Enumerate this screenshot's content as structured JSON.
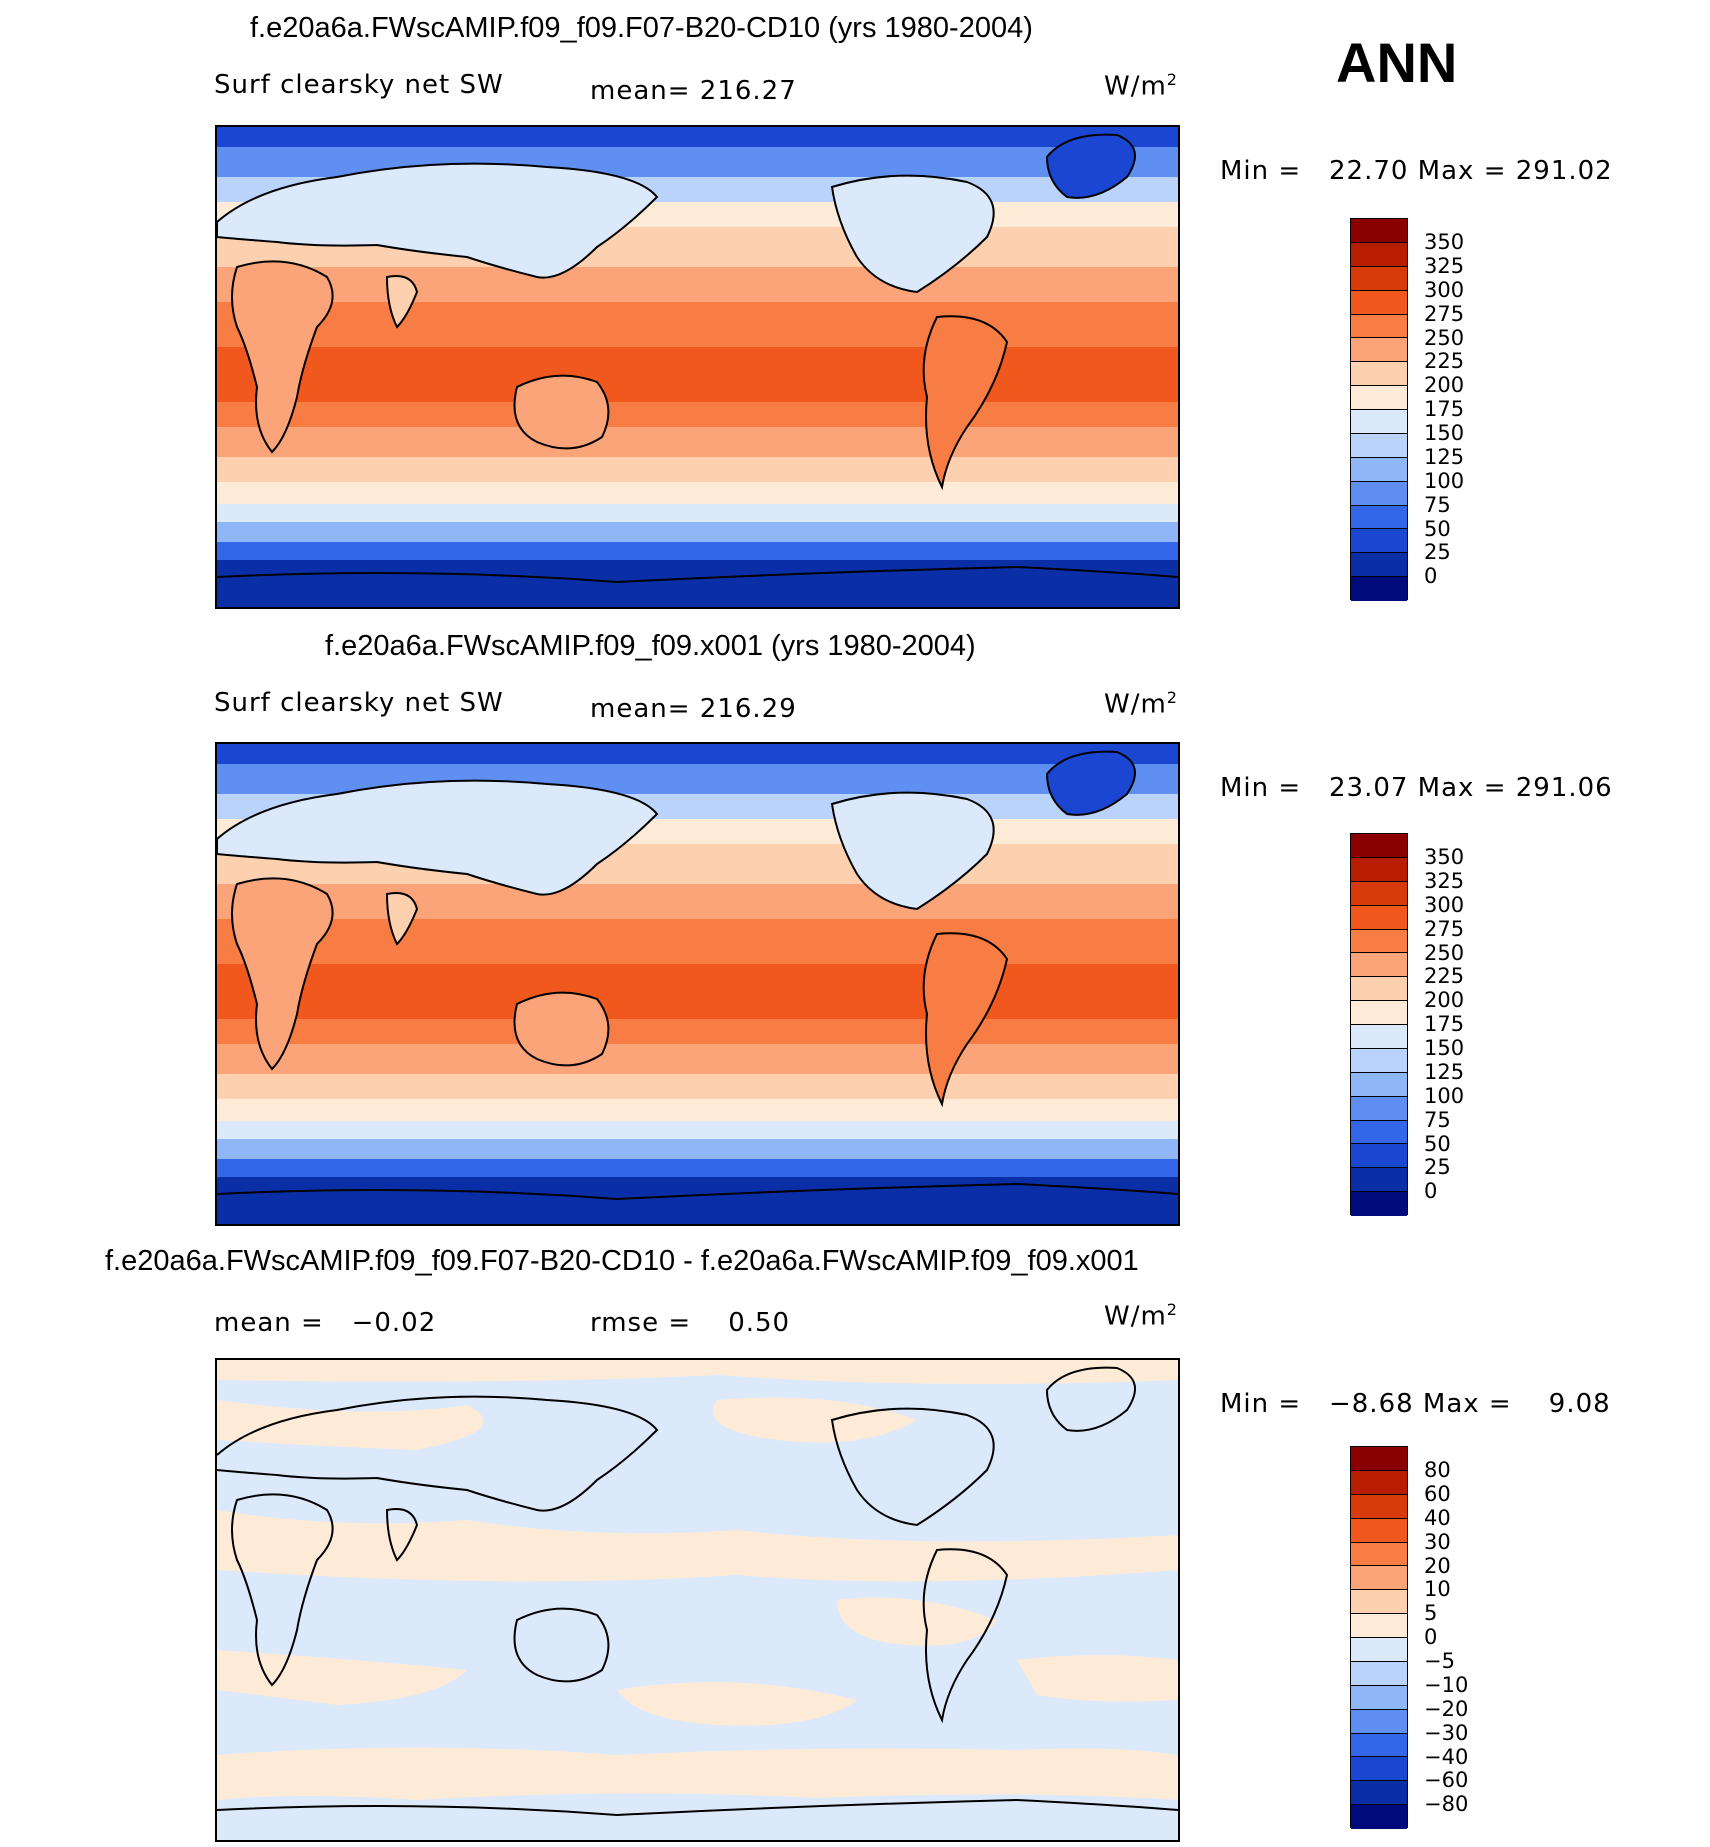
{
  "season": "ANN",
  "units": "W/m",
  "units_sup": "2",
  "panels": [
    {
      "title": "f.e20a6a.FWscAMIP.f09_f09.F07-B20-CD10 (yrs 1980-2004)",
      "var_label": "Surf clearsky net SW",
      "stat_label": "mean= 216.27",
      "minmax": "Min =   22.70 Max = 291.02"
    },
    {
      "title": "f.e20a6a.FWscAMIP.f09_f09.x001 (yrs 1980-2004)",
      "var_label": "Surf clearsky net SW",
      "stat_label": "mean= 216.29",
      "minmax": "Min =   23.07 Max = 291.06"
    },
    {
      "title": "f.e20a6a.FWscAMIP.f09_f09.F07-B20-CD10 - f.e20a6a.FWscAMIP.f09_f09.x001",
      "var_label": "mean =   −0.02",
      "stat_label": "rmse =    0.50",
      "minmax": "Min =   −8.68 Max =    9.08"
    }
  ],
  "colorbar_abs": {
    "labels": [
      "350",
      "325",
      "300",
      "275",
      "250",
      "225",
      "200",
      "175",
      "150",
      "125",
      "100",
      "75",
      "50",
      "25",
      "0"
    ],
    "colors": [
      "#8b0000",
      "#b81d00",
      "#d93a0a",
      "#f0581e",
      "#f77d45",
      "#fba47a",
      "#fdd0b0",
      "#fdebd8",
      "#dbe9fb",
      "#b9d3fb",
      "#8fb6f7",
      "#5f8ff0",
      "#3466e8",
      "#1a46d2",
      "#0a2ea6",
      "#000a7a"
    ]
  },
  "colorbar_diff": {
    "labels": [
      "80",
      "60",
      "40",
      "30",
      "20",
      "10",
      "5",
      "0",
      "−5",
      "−10",
      "−20",
      "−30",
      "−40",
      "−60",
      "−80"
    ],
    "colors": [
      "#8b0000",
      "#b81d00",
      "#d93a0a",
      "#f0581e",
      "#f77d45",
      "#fba47a",
      "#fdd0b0",
      "#fdebd8",
      "#dbe9fb",
      "#b9d3fb",
      "#8fb6f7",
      "#5f8ff0",
      "#3466e8",
      "#1a46d2",
      "#0a2ea6",
      "#000a7a"
    ]
  }
}
